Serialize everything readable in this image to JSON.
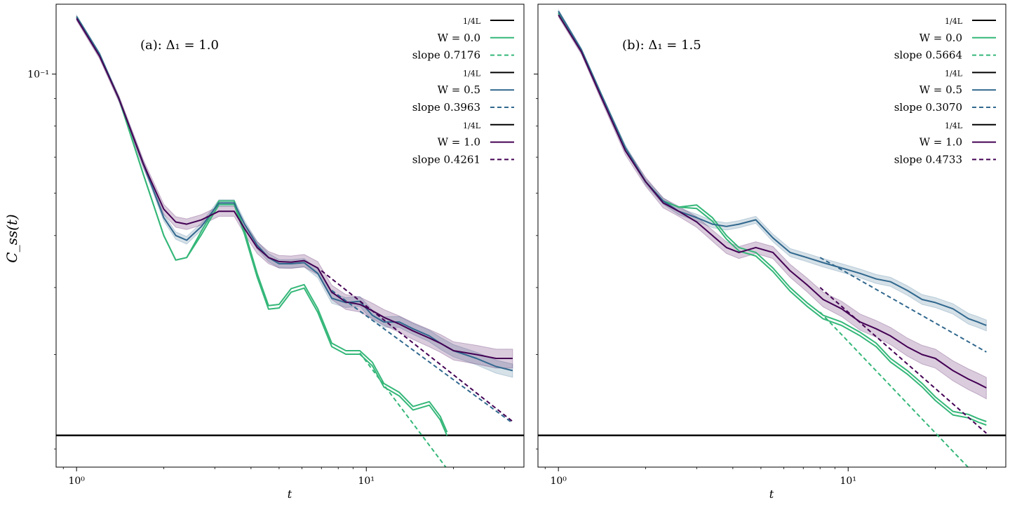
{
  "figure": {
    "ylabel": "C_ss(t)",
    "colors": {
      "W0": "#35b779",
      "W05": "#31688e",
      "W1": "#440154",
      "L": "#000000"
    }
  },
  "chart_data": [
    {
      "type": "line",
      "panel_label": "(a): Δ₁ = 1.0",
      "xlabel": "t",
      "ylabel": "C_ss(t)",
      "xscale": "log",
      "yscale": "log",
      "xlim": [
        0.85,
        35
      ],
      "ylim": [
        0.0185,
        0.135
      ],
      "x_ticks": [
        {
          "value": 1,
          "label": "10⁰"
        },
        {
          "value": 10,
          "label": "10¹"
        }
      ],
      "y_ticks": [
        {
          "value": 0.1,
          "label": "10⁻¹"
        }
      ],
      "hline": 0.0212,
      "legend_position": "top-right",
      "legend": [
        {
          "label": "1/4L",
          "style": "solid",
          "color": "#000000"
        },
        {
          "label": "W = 0.0",
          "style": "solid",
          "color": "#35b779"
        },
        {
          "label": "slope 0.7176",
          "style": "dashed",
          "color": "#35b779"
        },
        {
          "label": "1/4L",
          "style": "solid",
          "color": "#000000"
        },
        {
          "label": "W = 0.5",
          "style": "solid",
          "color": "#31688e"
        },
        {
          "label": "slope 0.3963",
          "style": "dashed",
          "color": "#31688e"
        },
        {
          "label": "1/4L",
          "style": "solid",
          "color": "#000000"
        },
        {
          "label": "W = 1.0",
          "style": "solid",
          "color": "#440154"
        },
        {
          "label": "slope 0.4261",
          "style": "dashed",
          "color": "#440154"
        }
      ],
      "series": [
        {
          "name": "W = 0.0",
          "color": "#35b779",
          "band": false,
          "x": [
            1.0,
            1.2,
            1.4,
            1.7,
            2.0,
            2.2,
            2.4,
            2.7,
            3.1,
            3.5,
            3.8,
            4.2,
            4.6,
            5.0,
            5.5,
            6.1,
            6.8,
            7.6,
            8.5,
            9.5,
            10.5,
            11.5,
            13.0,
            14.5,
            16.5,
            18.0,
            19.0
          ],
          "y": [
            0.128,
            0.109,
            0.09,
            0.065,
            0.05,
            0.045,
            0.0455,
            0.051,
            0.058,
            0.058,
            0.051,
            0.0425,
            0.037,
            0.0372,
            0.0398,
            0.0405,
            0.0365,
            0.0315,
            0.0305,
            0.0305,
            0.029,
            0.0265,
            0.0255,
            0.024,
            0.0245,
            0.023,
            0.0215
          ]
        },
        {
          "name": "W = 0.5",
          "color": "#31688e",
          "band": true,
          "band_halfwidth": 0.0008,
          "x": [
            1.0,
            1.2,
            1.4,
            1.7,
            2.0,
            2.2,
            2.4,
            2.7,
            3.1,
            3.5,
            3.8,
            4.2,
            4.6,
            5.0,
            5.5,
            6.1,
            6.8,
            7.6,
            8.5,
            9.5,
            10.5,
            11.5,
            13.0,
            14.5,
            16.5,
            18.0,
            20.0,
            24.0,
            28.0,
            32.0
          ],
          "y": [
            0.128,
            0.109,
            0.09,
            0.068,
            0.054,
            0.05,
            0.049,
            0.052,
            0.0575,
            0.0575,
            0.0525,
            0.048,
            0.0455,
            0.0443,
            0.0443,
            0.0445,
            0.0425,
            0.0382,
            0.0375,
            0.0377,
            0.0355,
            0.0345,
            0.0345,
            0.0335,
            0.0325,
            0.0315,
            0.0305,
            0.0295,
            0.0285,
            0.028
          ]
        },
        {
          "name": "W = 1.0",
          "color": "#440154",
          "band": true,
          "band_halfwidth": 0.0012,
          "x": [
            1.0,
            1.2,
            1.4,
            1.7,
            2.0,
            2.2,
            2.4,
            2.7,
            3.1,
            3.5,
            3.8,
            4.2,
            4.6,
            5.0,
            5.5,
            6.1,
            6.8,
            7.6,
            8.5,
            9.5,
            10.5,
            11.5,
            13.0,
            14.5,
            16.5,
            18.0,
            20.0,
            24.0,
            28.0,
            32.0
          ],
          "y": [
            0.127,
            0.108,
            0.09,
            0.068,
            0.056,
            0.053,
            0.0525,
            0.0535,
            0.0555,
            0.0555,
            0.0515,
            0.0475,
            0.0455,
            0.0447,
            0.0446,
            0.0449,
            0.0435,
            0.0392,
            0.0376,
            0.0372,
            0.0362,
            0.0352,
            0.0342,
            0.0332,
            0.0322,
            0.0315,
            0.0305,
            0.03,
            0.0295,
            0.0295
          ]
        }
      ],
      "fits": [
        {
          "label": "slope 0.7176",
          "color": "#35b779",
          "slope": -0.7176,
          "x_start": 9.5,
          "y_start": 0.0302,
          "x_end": 19.0
        },
        {
          "label": "slope 0.3963",
          "color": "#31688e",
          "slope": -0.3963,
          "x_start": 7.6,
          "y_start": 0.0395,
          "x_end": 32.0
        },
        {
          "label": "slope 0.4261",
          "color": "#440154",
          "slope": -0.4261,
          "x_start": 7.0,
          "y_start": 0.043,
          "x_end": 32.0
        }
      ]
    },
    {
      "type": "line",
      "panel_label": "(b): Δ₁ = 1.5",
      "xlabel": "t",
      "ylabel": "",
      "xscale": "log",
      "yscale": "log",
      "xlim": [
        0.85,
        35
      ],
      "ylim": [
        0.0185,
        0.135
      ],
      "x_ticks": [
        {
          "value": 1,
          "label": "10⁰"
        },
        {
          "value": 10,
          "label": "10¹"
        }
      ],
      "y_ticks": [],
      "hline": 0.0212,
      "legend_position": "top-right",
      "legend": [
        {
          "label": "1/4L",
          "style": "solid",
          "color": "#000000"
        },
        {
          "label": "W = 0.0",
          "style": "solid",
          "color": "#35b779"
        },
        {
          "label": "slope 0.5664",
          "style": "dashed",
          "color": "#35b779"
        },
        {
          "label": "1/4L",
          "style": "solid",
          "color": "#000000"
        },
        {
          "label": "W = 0.5",
          "style": "solid",
          "color": "#31688e"
        },
        {
          "label": "slope 0.3070",
          "style": "dashed",
          "color": "#31688e"
        },
        {
          "label": "1/4L",
          "style": "solid",
          "color": "#000000"
        },
        {
          "label": "W = 1.0",
          "style": "solid",
          "color": "#440154"
        },
        {
          "label": "slope 0.4733",
          "style": "dashed",
          "color": "#440154"
        }
      ],
      "series": [
        {
          "name": "W = 0.0",
          "color": "#35b779",
          "band": false,
          "x": [
            1.0,
            1.2,
            1.4,
            1.7,
            2.0,
            2.3,
            2.6,
            3.0,
            3.4,
            3.8,
            4.2,
            4.8,
            5.5,
            6.3,
            7.2,
            8.2,
            9.5,
            11.0,
            12.5,
            14.0,
            16.0,
            18.0,
            20.0,
            23.0,
            26.0,
            28.0,
            30.0
          ],
          "y": [
            0.13,
            0.111,
            0.092,
            0.073,
            0.063,
            0.058,
            0.0565,
            0.057,
            0.054,
            0.05,
            0.0475,
            0.0465,
            0.0435,
            0.04,
            0.0375,
            0.0355,
            0.0345,
            0.033,
            0.0315,
            0.0295,
            0.028,
            0.0265,
            0.025,
            0.0235,
            0.0232,
            0.0228,
            0.0225
          ]
        },
        {
          "name": "W = 0.5",
          "color": "#31688e",
          "band": true,
          "band_halfwidth": 0.0008,
          "x": [
            1.0,
            1.2,
            1.4,
            1.7,
            2.0,
            2.3,
            2.6,
            3.0,
            3.4,
            3.8,
            4.2,
            4.8,
            5.5,
            6.3,
            7.2,
            8.2,
            9.5,
            11.0,
            12.5,
            14.0,
            16.0,
            18.0,
            20.0,
            23.0,
            26.0,
            28.0,
            30.0
          ],
          "y": [
            0.131,
            0.111,
            0.092,
            0.073,
            0.063,
            0.058,
            0.0555,
            0.054,
            0.0525,
            0.052,
            0.0525,
            0.0535,
            0.0495,
            0.0465,
            0.0455,
            0.0445,
            0.0435,
            0.0425,
            0.0415,
            0.041,
            0.0395,
            0.038,
            0.0375,
            0.0365,
            0.035,
            0.0345,
            0.034
          ]
        },
        {
          "name": "W = 1.0",
          "color": "#440154",
          "band": true,
          "band_halfwidth": 0.0012,
          "x": [
            1.0,
            1.2,
            1.4,
            1.7,
            2.0,
            2.3,
            2.6,
            3.0,
            3.4,
            3.8,
            4.2,
            4.8,
            5.5,
            6.3,
            7.2,
            8.2,
            9.5,
            11.0,
            12.5,
            14.0,
            16.0,
            18.0,
            20.0,
            23.0,
            26.0,
            28.0,
            30.0
          ],
          "y": [
            0.129,
            0.11,
            0.091,
            0.072,
            0.063,
            0.0575,
            0.0555,
            0.053,
            0.05,
            0.0475,
            0.0465,
            0.0475,
            0.0465,
            0.043,
            0.0405,
            0.038,
            0.0365,
            0.0345,
            0.0335,
            0.0325,
            0.031,
            0.03,
            0.0295,
            0.028,
            0.027,
            0.0265,
            0.026
          ]
        }
      ],
      "fits": [
        {
          "label": "slope 0.5664",
          "color": "#35b779",
          "slope": -0.5664,
          "x_start": 8.0,
          "y_start": 0.036,
          "x_end": 30.0
        },
        {
          "label": "slope 0.3070",
          "color": "#31688e",
          "slope": -0.307,
          "x_start": 8.0,
          "y_start": 0.0455,
          "x_end": 30.0
        },
        {
          "label": "slope 0.4733",
          "color": "#440154",
          "slope": -0.4733,
          "x_start": 8.0,
          "y_start": 0.04,
          "x_end": 30.0
        }
      ]
    }
  ]
}
